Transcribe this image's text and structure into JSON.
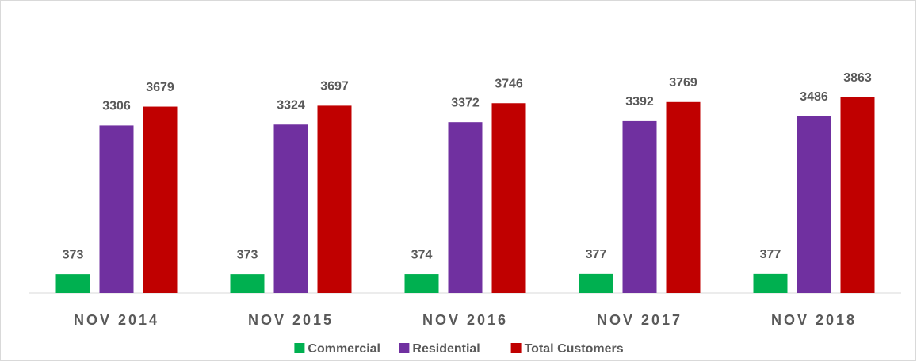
{
  "chart_data": {
    "type": "bar",
    "categories": [
      "NOV 2014",
      "NOV 2015",
      "NOV 2016",
      "NOV 2017",
      "NOV 2018"
    ],
    "series": [
      {
        "name": "Commercial",
        "color": "#00b050",
        "values": [
          373,
          373,
          374,
          377,
          377
        ]
      },
      {
        "name": "Residential",
        "color": "#7030a0",
        "values": [
          3306,
          3324,
          3372,
          3392,
          3486
        ]
      },
      {
        "name": "Total Customers",
        "color": "#c00000",
        "values": [
          3679,
          3697,
          3746,
          3769,
          3863
        ]
      }
    ],
    "ylim": [
      0,
      5000
    ],
    "legend": "bottom"
  }
}
